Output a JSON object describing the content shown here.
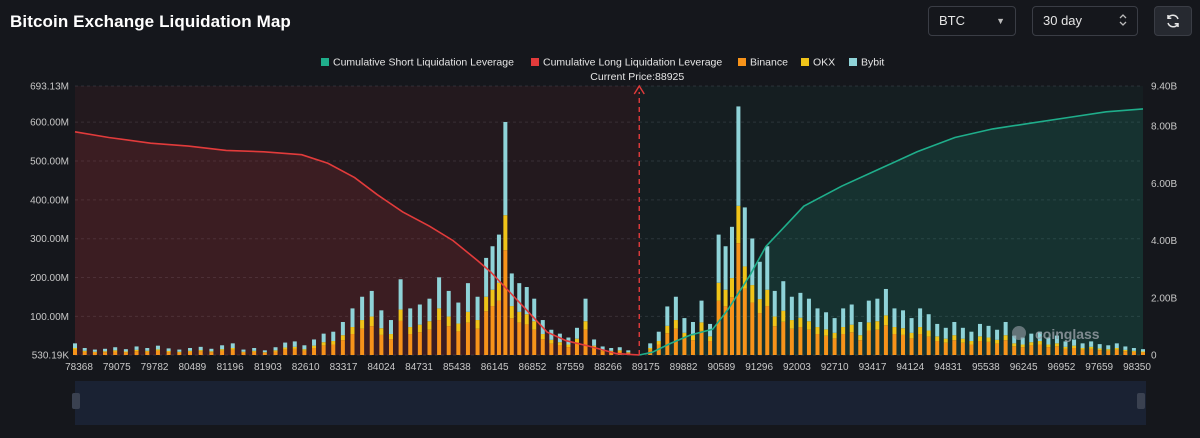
{
  "header": {
    "title": "Bitcoin Exchange Liquidation Map",
    "coin_select": "BTC",
    "range_select": "30 day"
  },
  "colors": {
    "short": "#1fae8b",
    "long": "#e23b3b",
    "binance": "#f7931a",
    "okx": "#f0c419",
    "bybit": "#8fd3d8",
    "current_price_line": "#e23b3b"
  },
  "chart_data": {
    "type": "bar",
    "title": "Bitcoin Exchange Liquidation Map",
    "legend": [
      "Cumulative Short Liquidation Leverage",
      "Cumulative Long Liquidation Leverage",
      "Binance",
      "OKX",
      "Bybit"
    ],
    "current_price_label": "Current Price:88925",
    "current_price": 88925,
    "watermark": "coinglass",
    "x_range": [
      78368,
      98350
    ],
    "x_ticks": [
      "78368",
      "79075",
      "79782",
      "80489",
      "81196",
      "81903",
      "82610",
      "83317",
      "84024",
      "84731",
      "85438",
      "86145",
      "86852",
      "87559",
      "88266",
      "89175",
      "89882",
      "90589",
      "91296",
      "92003",
      "92710",
      "93417",
      "94124",
      "94831",
      "95538",
      "96245",
      "96952",
      "97659",
      "98350"
    ],
    "y_left_ticks": [
      {
        "label": "530.19K",
        "value": 0.53
      },
      {
        "label": "100.00M",
        "value": 100
      },
      {
        "label": "200.00M",
        "value": 200
      },
      {
        "label": "300.00M",
        "value": 300
      },
      {
        "label": "400.00M",
        "value": 400
      },
      {
        "label": "500.00M",
        "value": 500
      },
      {
        "label": "600.00M",
        "value": 600
      },
      {
        "label": "693.13M",
        "value": 693.13
      }
    ],
    "y_left_range": [
      0.53,
      693.13
    ],
    "y_right_ticks": [
      {
        "label": "0",
        "value": 0
      },
      {
        "label": "2.00B",
        "value": 2
      },
      {
        "label": "4.00B",
        "value": 4
      },
      {
        "label": "6.00B",
        "value": 6
      },
      {
        "label": "8.00B",
        "value": 8
      },
      {
        "label": "9.40B",
        "value": 9.4
      }
    ],
    "y_right_range": [
      0,
      9.4
    ],
    "bars": [
      {
        "x": 78368,
        "total": 30
      },
      {
        "x": 78550,
        "total": 18
      },
      {
        "x": 78740,
        "total": 14
      },
      {
        "x": 78930,
        "total": 16
      },
      {
        "x": 79120,
        "total": 20
      },
      {
        "x": 79320,
        "total": 15
      },
      {
        "x": 79520,
        "total": 22
      },
      {
        "x": 79720,
        "total": 18
      },
      {
        "x": 79920,
        "total": 24
      },
      {
        "x": 80120,
        "total": 17
      },
      {
        "x": 80320,
        "total": 14
      },
      {
        "x": 80520,
        "total": 18
      },
      {
        "x": 80720,
        "total": 21
      },
      {
        "x": 80920,
        "total": 16
      },
      {
        "x": 81120,
        "total": 25
      },
      {
        "x": 81320,
        "total": 30
      },
      {
        "x": 81520,
        "total": 14
      },
      {
        "x": 81720,
        "total": 18
      },
      {
        "x": 81920,
        "total": 12
      },
      {
        "x": 82120,
        "total": 20
      },
      {
        "x": 82300,
        "total": 32
      },
      {
        "x": 82480,
        "total": 35
      },
      {
        "x": 82660,
        "total": 25
      },
      {
        "x": 82840,
        "total": 40
      },
      {
        "x": 83020,
        "total": 55
      },
      {
        "x": 83200,
        "total": 60
      },
      {
        "x": 83380,
        "total": 85
      },
      {
        "x": 83560,
        "total": 120
      },
      {
        "x": 83740,
        "total": 150
      },
      {
        "x": 83920,
        "total": 165
      },
      {
        "x": 84100,
        "total": 115
      },
      {
        "x": 84280,
        "total": 90
      },
      {
        "x": 84460,
        "total": 195
      },
      {
        "x": 84640,
        "total": 120
      },
      {
        "x": 84820,
        "total": 130
      },
      {
        "x": 85000,
        "total": 145
      },
      {
        "x": 85180,
        "total": 200
      },
      {
        "x": 85360,
        "total": 165
      },
      {
        "x": 85540,
        "total": 135
      },
      {
        "x": 85720,
        "total": 185
      },
      {
        "x": 85900,
        "total": 150
      },
      {
        "x": 86060,
        "total": 250
      },
      {
        "x": 86180,
        "total": 280
      },
      {
        "x": 86300,
        "total": 310
      },
      {
        "x": 86420,
        "total": 600
      },
      {
        "x": 86540,
        "total": 210
      },
      {
        "x": 86680,
        "total": 185
      },
      {
        "x": 86820,
        "total": 175
      },
      {
        "x": 86960,
        "total": 145
      },
      {
        "x": 87120,
        "total": 90
      },
      {
        "x": 87280,
        "total": 65
      },
      {
        "x": 87440,
        "total": 55
      },
      {
        "x": 87600,
        "total": 45
      },
      {
        "x": 87760,
        "total": 70
      },
      {
        "x": 87920,
        "total": 145
      },
      {
        "x": 88080,
        "total": 40
      },
      {
        "x": 88240,
        "total": 22
      },
      {
        "x": 88400,
        "total": 18
      },
      {
        "x": 88560,
        "total": 20
      },
      {
        "x": 88720,
        "total": 12
      },
      {
        "x": 89130,
        "total": 30
      },
      {
        "x": 89290,
        "total": 60
      },
      {
        "x": 89450,
        "total": 125
      },
      {
        "x": 89610,
        "total": 150
      },
      {
        "x": 89770,
        "total": 95
      },
      {
        "x": 89930,
        "total": 85
      },
      {
        "x": 90090,
        "total": 140
      },
      {
        "x": 90250,
        "total": 80
      },
      {
        "x": 90410,
        "total": 310
      },
      {
        "x": 90540,
        "total": 280
      },
      {
        "x": 90660,
        "total": 330
      },
      {
        "x": 90780,
        "total": 640
      },
      {
        "x": 90900,
        "total": 380
      },
      {
        "x": 91040,
        "total": 300
      },
      {
        "x": 91180,
        "total": 240
      },
      {
        "x": 91320,
        "total": 280
      },
      {
        "x": 91460,
        "total": 165
      },
      {
        "x": 91620,
        "total": 190
      },
      {
        "x": 91780,
        "total": 150
      },
      {
        "x": 91940,
        "total": 160
      },
      {
        "x": 92100,
        "total": 145
      },
      {
        "x": 92260,
        "total": 120
      },
      {
        "x": 92420,
        "total": 110
      },
      {
        "x": 92580,
        "total": 95
      },
      {
        "x": 92740,
        "total": 120
      },
      {
        "x": 92900,
        "total": 130
      },
      {
        "x": 93060,
        "total": 85
      },
      {
        "x": 93220,
        "total": 140
      },
      {
        "x": 93380,
        "total": 145
      },
      {
        "x": 93540,
        "total": 170
      },
      {
        "x": 93700,
        "total": 120
      },
      {
        "x": 93860,
        "total": 115
      },
      {
        "x": 94020,
        "total": 95
      },
      {
        "x": 94180,
        "total": 120
      },
      {
        "x": 94340,
        "total": 105
      },
      {
        "x": 94500,
        "total": 80
      },
      {
        "x": 94660,
        "total": 70
      },
      {
        "x": 94820,
        "total": 85
      },
      {
        "x": 94980,
        "total": 70
      },
      {
        "x": 95140,
        "total": 60
      },
      {
        "x": 95300,
        "total": 80
      },
      {
        "x": 95460,
        "total": 75
      },
      {
        "x": 95620,
        "total": 65
      },
      {
        "x": 95780,
        "total": 85
      },
      {
        "x": 95940,
        "total": 50
      },
      {
        "x": 96100,
        "total": 45
      },
      {
        "x": 96260,
        "total": 55
      },
      {
        "x": 96420,
        "total": 60
      },
      {
        "x": 96580,
        "total": 45
      },
      {
        "x": 96740,
        "total": 50
      },
      {
        "x": 96900,
        "total": 35
      },
      {
        "x": 97060,
        "total": 40
      },
      {
        "x": 97220,
        "total": 30
      },
      {
        "x": 97380,
        "total": 35
      },
      {
        "x": 97540,
        "total": 28
      },
      {
        "x": 97700,
        "total": 25
      },
      {
        "x": 97860,
        "total": 30
      },
      {
        "x": 98020,
        "total": 22
      },
      {
        "x": 98180,
        "total": 18
      },
      {
        "x": 98350,
        "total": 15
      }
    ],
    "long_cumulative": [
      {
        "x": 78368,
        "y": 7.8
      },
      {
        "x": 79000,
        "y": 7.6
      },
      {
        "x": 79782,
        "y": 7.4
      },
      {
        "x": 80489,
        "y": 7.3
      },
      {
        "x": 81196,
        "y": 7.15
      },
      {
        "x": 81903,
        "y": 7.1
      },
      {
        "x": 82610,
        "y": 7.0
      },
      {
        "x": 83100,
        "y": 6.7
      },
      {
        "x": 83600,
        "y": 6.2
      },
      {
        "x": 84024,
        "y": 5.6
      },
      {
        "x": 84500,
        "y": 5.0
      },
      {
        "x": 85000,
        "y": 4.5
      },
      {
        "x": 85438,
        "y": 4.0
      },
      {
        "x": 85900,
        "y": 3.3
      },
      {
        "x": 86145,
        "y": 2.9
      },
      {
        "x": 86500,
        "y": 2.2
      },
      {
        "x": 86852,
        "y": 1.5
      },
      {
        "x": 87200,
        "y": 0.8
      },
      {
        "x": 87559,
        "y": 0.5
      },
      {
        "x": 88000,
        "y": 0.3
      },
      {
        "x": 88500,
        "y": 0.05
      },
      {
        "x": 88925,
        "y": 0
      }
    ],
    "short_cumulative": [
      {
        "x": 88925,
        "y": 0
      },
      {
        "x": 89175,
        "y": 0.1
      },
      {
        "x": 89500,
        "y": 0.4
      },
      {
        "x": 89882,
        "y": 0.7
      },
      {
        "x": 90300,
        "y": 0.9
      },
      {
        "x": 90589,
        "y": 1.6
      },
      {
        "x": 91000,
        "y": 2.8
      },
      {
        "x": 91296,
        "y": 3.8
      },
      {
        "x": 91700,
        "y": 4.6
      },
      {
        "x": 92003,
        "y": 5.2
      },
      {
        "x": 92710,
        "y": 5.9
      },
      {
        "x": 93417,
        "y": 6.5
      },
      {
        "x": 94124,
        "y": 7.1
      },
      {
        "x": 94831,
        "y": 7.6
      },
      {
        "x": 95538,
        "y": 7.9
      },
      {
        "x": 96245,
        "y": 8.1
      },
      {
        "x": 96952,
        "y": 8.3
      },
      {
        "x": 97659,
        "y": 8.5
      },
      {
        "x": 98350,
        "y": 8.6
      }
    ]
  }
}
